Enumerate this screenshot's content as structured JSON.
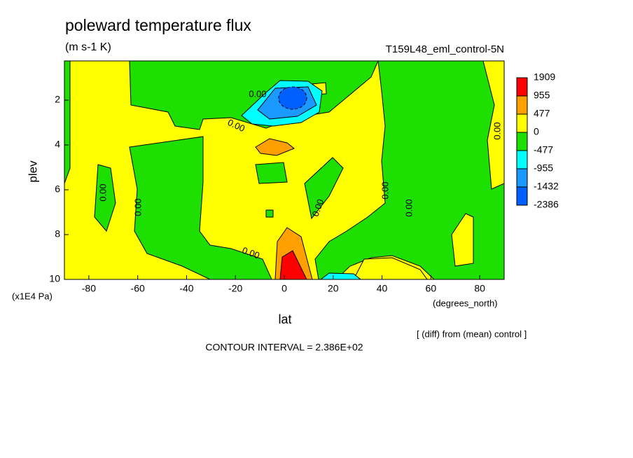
{
  "chart_data": {
    "type": "contour",
    "title": "poleward temperature flux",
    "subtitle": "(m s-1 K)",
    "dataset_label": "T159L48_eml_control-5N",
    "x_label": "lat",
    "x_units": "(degrees_north)",
    "y_label": "plev",
    "y_units": "(x1E4 Pa)",
    "xlim": [
      -90,
      90
    ],
    "xticks": [
      -80,
      -60,
      -40,
      -20,
      0,
      20,
      40,
      60,
      80
    ],
    "ylim": [
      10,
      0.25
    ],
    "yticks": [
      2,
      4,
      6,
      8,
      10
    ],
    "levels": [
      -2386,
      -1432,
      -955,
      -477,
      0,
      477,
      955,
      1909
    ],
    "colors": [
      "#0060ff",
      "#1a99ff",
      "#00ffff",
      "#1ee000",
      "#ffff00",
      "#ff9f00",
      "#ff0000"
    ],
    "contour_label": {
      "value": 0,
      "label": "0.00"
    },
    "footnote": "[ (diff) from (mean) control ]",
    "contour_interval": "CONTOUR INTERVAL = 2.386E+02"
  }
}
